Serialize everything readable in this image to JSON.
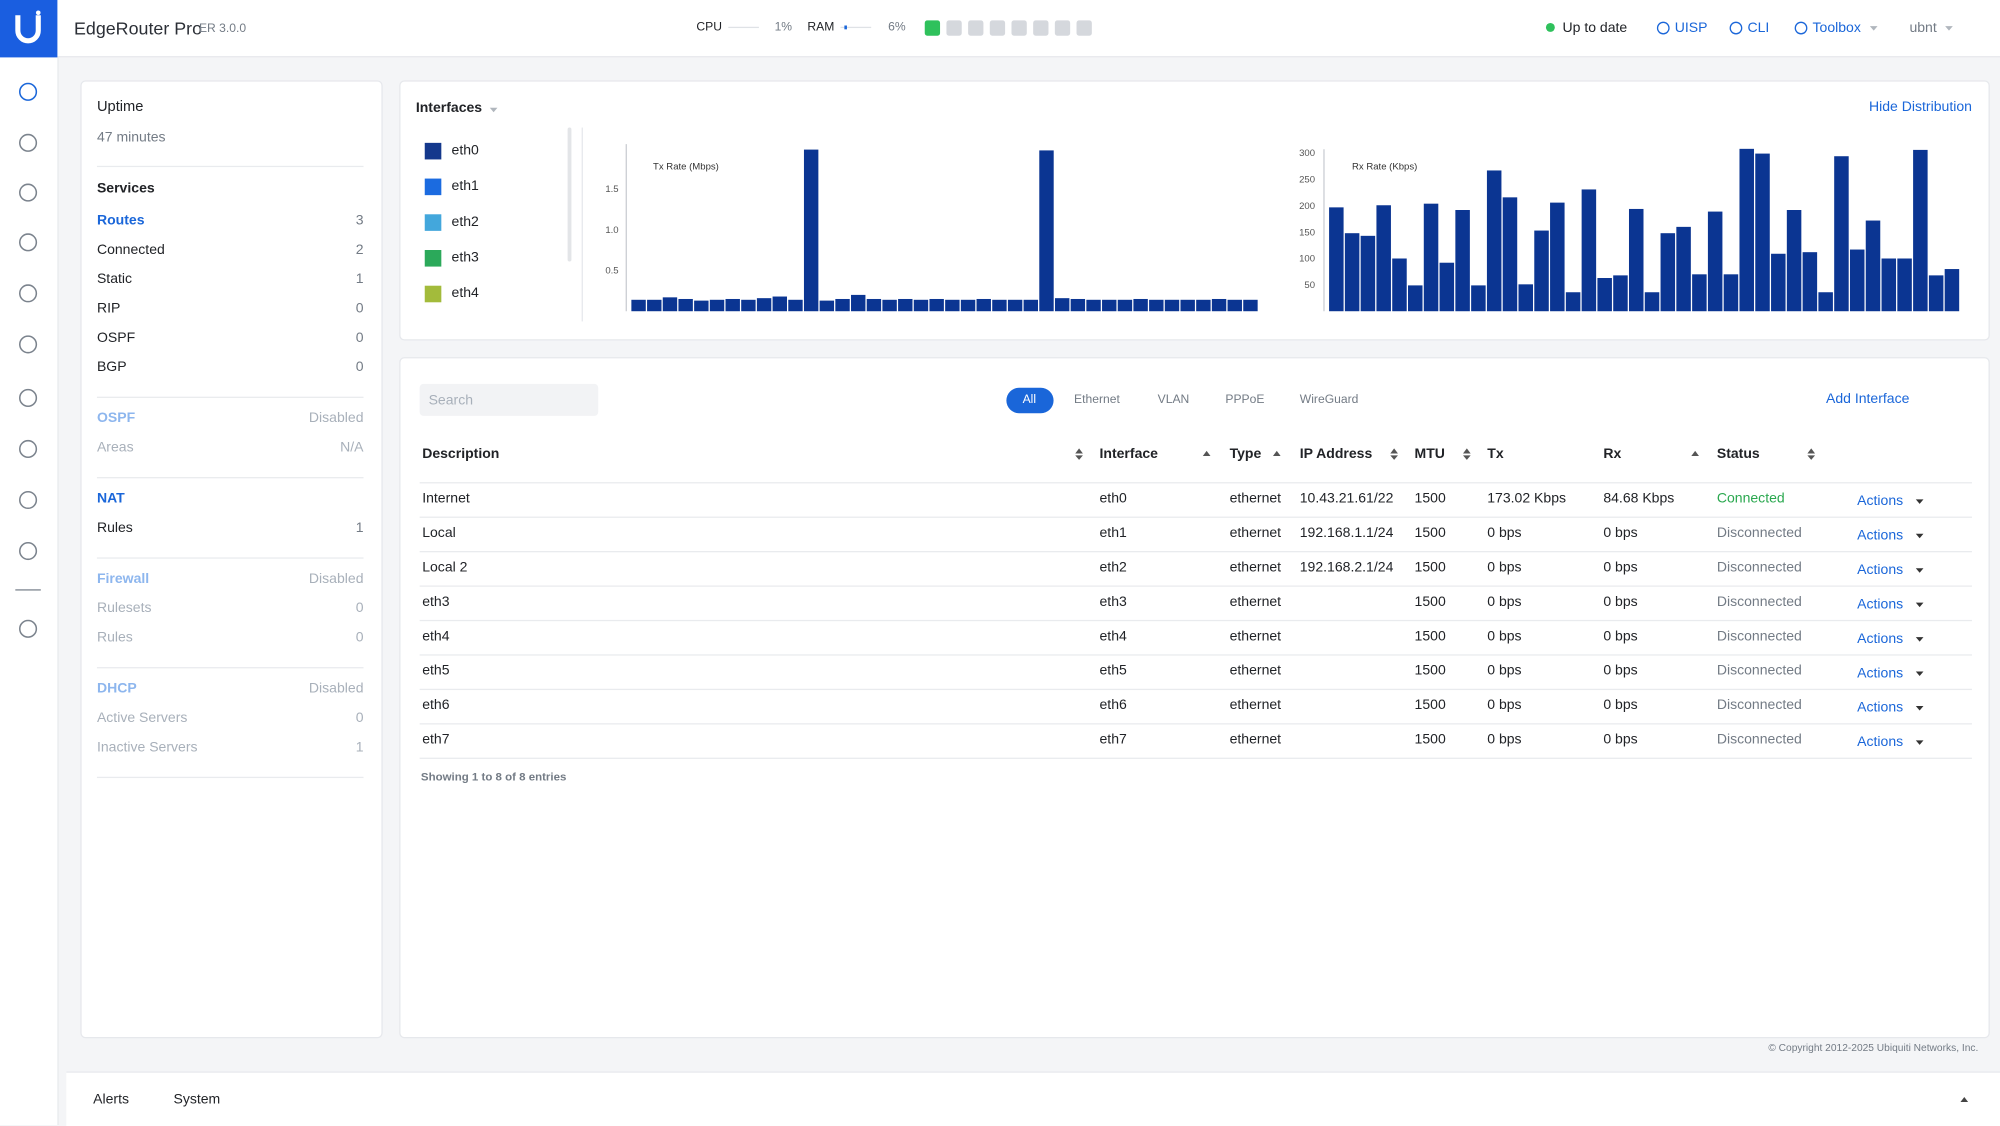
{
  "header": {
    "product": "EdgeRouter Pro",
    "version": "ER 3.0.0",
    "cpu_label": "CPU",
    "cpu": "1%",
    "ram_label": "RAM",
    "ram": "6%",
    "status": "Up to date",
    "links": [
      "UISP",
      "CLI",
      "Toolbox"
    ],
    "user": "ubnt"
  },
  "summary": {
    "uptime_label": "Uptime",
    "uptime": "47 minutes",
    "sections": [
      {
        "title": "Services",
        "rows": [
          [
            "Routes",
            3
          ],
          [
            "Connected",
            2
          ],
          [
            "Static",
            1
          ],
          [
            "RIP",
            0
          ],
          [
            "OSPF",
            0
          ],
          [
            "BGP",
            0
          ]
        ]
      },
      {
        "title": "OSPF",
        "status": "Disabled",
        "rows": [
          [
            "Areas",
            "N/A"
          ]
        ]
      },
      {
        "title": "NAT",
        "rows": [
          [
            "Rules",
            1
          ]
        ]
      },
      {
        "title": "Firewall",
        "status": "Disabled",
        "rows": [
          [
            "Rulesets",
            0
          ],
          [
            "Rules",
            0
          ]
        ]
      },
      {
        "title": "DHCP",
        "status": "Disabled",
        "rows": [
          [
            "Active Servers",
            0
          ],
          [
            "Inactive Servers",
            1
          ]
        ]
      }
    ]
  },
  "interfaces": {
    "title": "Interfaces",
    "toggle": "Hide Distribution",
    "legend": [
      {
        "name": "eth0",
        "color": "#14388c"
      },
      {
        "name": "eth1",
        "color": "#1b6be0"
      },
      {
        "name": "eth2",
        "color": "#43a7dc"
      },
      {
        "name": "eth3",
        "color": "#2ba95a"
      },
      {
        "name": "eth4",
        "color": "#a3bb3b"
      }
    ],
    "tx_chart": {
      "type": "bar",
      "title": "Tx Rate (Mbps)",
      "color": "#0b3592",
      "ylim": [
        0,
        2
      ],
      "yticks": [
        0.5,
        {
          "value": 1,
          "label": "1.0"
        },
        1.5
      ],
      "values": [
        0.14,
        0.14,
        0.17,
        0.15,
        0.13,
        0.14,
        0.15,
        0.14,
        0.16,
        0.18,
        0.14,
        1.98,
        0.13,
        0.15,
        0.2,
        0.15,
        0.14,
        0.15,
        0.14,
        0.15,
        0.14,
        0.14,
        0.15,
        0.14,
        0.14,
        0.14,
        1.97,
        0.16,
        0.15,
        0.14,
        0.14,
        0.14,
        0.15,
        0.14,
        0.14,
        0.14,
        0.14,
        0.15,
        0.14,
        0.14
      ]
    },
    "rx_chart": {
      "type": "bar",
      "title": "Rx Rate (Kbps)",
      "color": "#0b3592",
      "ylim": [
        0,
        300
      ],
      "yticks": [
        50,
        100,
        150,
        200,
        250,
        300
      ],
      "values": [
        197,
        148,
        143,
        201,
        100,
        49,
        204,
        92,
        192,
        49,
        267,
        216,
        51,
        153,
        206,
        36,
        231,
        63,
        68,
        194,
        36,
        148,
        160,
        70,
        189,
        70,
        308,
        299,
        109,
        192,
        112,
        36,
        294,
        117,
        172,
        100,
        100,
        306,
        68,
        80
      ]
    }
  },
  "table": {
    "search": "Search",
    "filters": [
      "All",
      "Ethernet",
      "VLAN",
      "PPPoE",
      "WireGuard"
    ],
    "add": "Add Interface",
    "columns": [
      "Description",
      "Interface",
      "Type",
      "IP Address",
      "MTU",
      "Tx",
      "Rx",
      "Status"
    ],
    "rows": [
      [
        "Internet",
        "eth0",
        "ethernet",
        "10.43.21.61/22",
        1500,
        "173.02 Kbps",
        "84.68 Kbps",
        "Connected"
      ],
      [
        "Local",
        "eth1",
        "ethernet",
        "192.168.1.1/24",
        1500,
        "0 bps",
        "0 bps",
        "Disconnected"
      ],
      [
        "Local 2",
        "eth2",
        "ethernet",
        "192.168.2.1/24",
        1500,
        "0 bps",
        "0 bps",
        "Disconnected"
      ],
      [
        "eth3",
        "eth3",
        "ethernet",
        null,
        1500,
        "0 bps",
        "0 bps",
        "Disconnected"
      ],
      [
        "eth4",
        "eth4",
        "ethernet",
        null,
        1500,
        "0 bps",
        "0 bps",
        "Disconnected"
      ],
      [
        "eth5",
        "eth5",
        "ethernet",
        null,
        1500,
        "0 bps",
        "0 bps",
        "Disconnected"
      ],
      [
        "eth6",
        "eth6",
        "ethernet",
        null,
        1500,
        "0 bps",
        "0 bps",
        "Disconnected"
      ],
      [
        "eth7",
        "eth7",
        "ethernet",
        null,
        1500,
        "0 bps",
        "0 bps",
        "Disconnected"
      ]
    ],
    "action": "Actions",
    "footer": "Showing 1 to 8 of 8 entries"
  },
  "copyright": "© Copyright 2012-2025 Ubiquiti Networks, Inc.",
  "bottom_tabs": [
    "Alerts",
    "System"
  ]
}
